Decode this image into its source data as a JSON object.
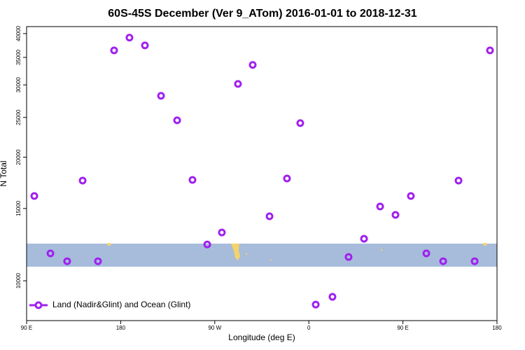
{
  "chart_data": {
    "type": "scatter",
    "title": "60S-45S December (Ver 9_ATom)   2016-01-01 to 2018-12-31",
    "x_label": "Longitude (deg E)",
    "y_label": "N Total",
    "log_y": true,
    "legend": "bottom-left",
    "xlim": [
      90,
      540
    ],
    "xticks": [
      {
        "value": 90,
        "label": "90 E"
      },
      {
        "value": 180,
        "label": "180"
      },
      {
        "value": 270,
        "label": "90 W"
      },
      {
        "value": 360,
        "label": "0"
      },
      {
        "value": 450,
        "label": "90 E"
      },
      {
        "value": 540,
        "label": "180"
      }
    ],
    "ylim": [
      8000,
      41600
    ],
    "yticks": [
      10000,
      15000,
      20000,
      25000,
      30000,
      35000,
      40000
    ],
    "series": [
      {
        "name": "Land (Nadir&Glint) and Ocean (Glint)",
        "color": "#a020f0",
        "x": [
          97.4,
          112.8,
          128.8,
          143.6,
          158.3,
          173.7,
          188.4,
          203.2,
          218.6,
          234,
          248.7,
          262.8,
          276.8,
          292.2,
          306.3,
          322.4,
          339.1,
          351.8,
          366.6,
          382.6,
          398,
          412.8,
          428.2,
          442.9,
          457.6,
          472.4,
          488.5,
          503.2,
          518.6,
          533.3
        ],
        "values": [
          16090,
          11660,
          11160,
          17540,
          11160,
          36400,
          39100,
          37430,
          28220,
          24600,
          17610,
          12260,
          13110,
          30170,
          33550,
          14360,
          17750,
          24210,
          8750,
          9140,
          11430,
          12660,
          15170,
          14470,
          16090,
          11660,
          11160,
          17540,
          11160,
          36400
        ]
      }
    ]
  }
}
